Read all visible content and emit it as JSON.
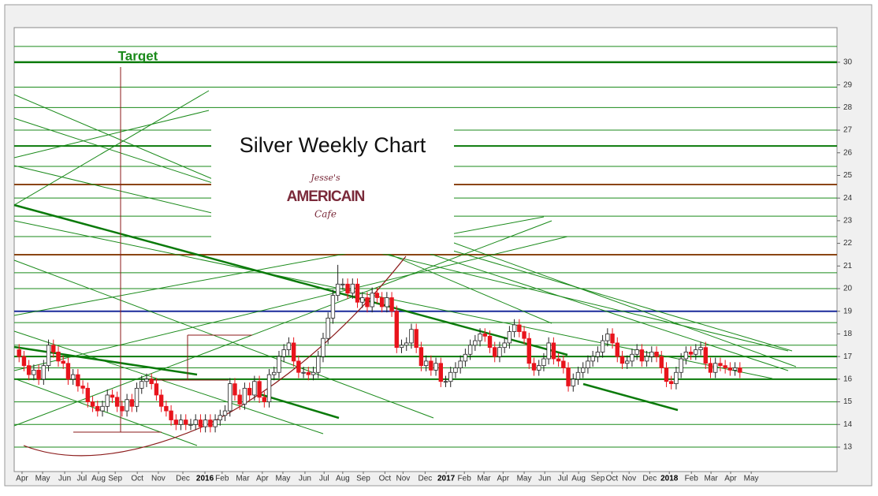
{
  "chart_data": {
    "type": "candlestick",
    "title": "Silver Weekly Chart",
    "annotation": "Target",
    "logo": {
      "top": "Jesse's",
      "middle": "AMERICAIN",
      "bottom": "Cafe"
    },
    "ylim": [
      11.92,
      31.53
    ],
    "yticks": [
      13,
      14,
      15,
      16,
      17,
      18,
      19,
      20,
      21,
      22,
      23,
      24,
      25,
      26,
      27,
      28,
      29,
      30
    ],
    "xlim": [
      0,
      167.8
    ],
    "xticks": [
      {
        "value": 1.6,
        "label": "Apr"
      },
      {
        "value": 5.8,
        "label": "May"
      },
      {
        "value": 10.3,
        "label": "Jun"
      },
      {
        "value": 13.8,
        "label": "Jul"
      },
      {
        "value": 17.2,
        "label": "Aug"
      },
      {
        "value": 20.6,
        "label": "Sep"
      },
      {
        "value": 25.1,
        "label": "Oct"
      },
      {
        "value": 29.4,
        "label": "Nov"
      },
      {
        "value": 34.4,
        "label": "Dec"
      },
      {
        "value": 38.9,
        "label": "2016"
      },
      {
        "value": 42.4,
        "label": "Feb"
      },
      {
        "value": 46.6,
        "label": "Mar"
      },
      {
        "value": 50.6,
        "label": "Apr"
      },
      {
        "value": 54.8,
        "label": "May"
      },
      {
        "value": 59.3,
        "label": "Jun"
      },
      {
        "value": 63.2,
        "label": "Jul"
      },
      {
        "value": 67.0,
        "label": "Aug"
      },
      {
        "value": 71.2,
        "label": "Sep"
      },
      {
        "value": 75.6,
        "label": "Oct"
      },
      {
        "value": 79.3,
        "label": "Nov"
      },
      {
        "value": 83.8,
        "label": "Dec"
      },
      {
        "value": 88.1,
        "label": "2017"
      },
      {
        "value": 91.8,
        "label": "Feb"
      },
      {
        "value": 95.8,
        "label": "Mar"
      },
      {
        "value": 99.7,
        "label": "Apr"
      },
      {
        "value": 104.0,
        "label": "May"
      },
      {
        "value": 108.2,
        "label": "Jun"
      },
      {
        "value": 111.9,
        "label": "Jul"
      },
      {
        "value": 115.1,
        "label": "Aug"
      },
      {
        "value": 119.0,
        "label": "Sep"
      },
      {
        "value": 121.9,
        "label": "Oct"
      },
      {
        "value": 125.4,
        "label": "Nov"
      },
      {
        "value": 129.6,
        "label": "Dec"
      },
      {
        "value": 133.6,
        "label": "2018"
      },
      {
        "value": 138.1,
        "label": "Feb"
      },
      {
        "value": 142.1,
        "label": "Mar"
      },
      {
        "value": 146.1,
        "label": "Apr"
      },
      {
        "value": 150.3,
        "label": "May"
      }
    ],
    "up_color": "#ffffff",
    "down_color": "#e8141c",
    "reference_lines": [
      {
        "value": 30.7,
        "color": "#1a8a1a",
        "width": 1
      },
      {
        "value": 30,
        "color": "#0a7a0a",
        "width": 2.5
      },
      {
        "value": 28.9,
        "color": "#1a8a1a",
        "width": 1
      },
      {
        "value": 28,
        "color": "#1a8a1a",
        "width": 1
      },
      {
        "value": 27,
        "color": "#1a8a1a",
        "width": 1
      },
      {
        "value": 26.3,
        "color": "#0a7a0a",
        "width": 2
      },
      {
        "value": 25.4,
        "color": "#1a8a1a",
        "width": 1
      },
      {
        "value": 24.6,
        "color": "#8b4513",
        "width": 2
      },
      {
        "value": 24,
        "color": "#1a8a1a",
        "width": 1
      },
      {
        "value": 23.2,
        "color": "#1a8a1a",
        "width": 1
      },
      {
        "value": 22.3,
        "color": "#1a8a1a",
        "width": 1
      },
      {
        "value": 21.5,
        "color": "#8b4513",
        "width": 2
      },
      {
        "value": 20.7,
        "color": "#1a8a1a",
        "width": 1
      },
      {
        "value": 20,
        "color": "#1a8a1a",
        "width": 1
      },
      {
        "value": 19,
        "color": "#1a2a9a",
        "width": 2
      },
      {
        "value": 18.5,
        "color": "#1a8a1a",
        "width": 1
      },
      {
        "value": 17.5,
        "color": "#1a8a1a",
        "width": 1
      },
      {
        "value": 17,
        "color": "#0a7a0a",
        "width": 2
      },
      {
        "value": 16.5,
        "color": "#1a8a1a",
        "width": 1
      },
      {
        "value": 16,
        "color": "#0a7a0a",
        "width": 2
      },
      {
        "value": 15,
        "color": "#1a8a1a",
        "width": 1
      },
      {
        "value": 14,
        "color": "#1a8a1a",
        "width": 1
      },
      {
        "value": 13,
        "color": "#1a8a1a",
        "width": 1
      }
    ],
    "open": [
      17.3,
      17.0,
      16.6,
      16.2,
      16.4,
      16.0,
      16.6,
      17.5,
      17.2,
      16.8,
      16.7,
      16.0,
      16.2,
      15.7,
      15.6,
      15.0,
      14.8,
      14.6,
      14.8,
      15.3,
      15.2,
      14.8,
      14.6,
      15.1,
      14.8,
      15.6,
      15.9,
      16.0,
      15.8,
      15.3,
      14.8,
      14.6,
      14.2,
      14.0,
      14.2,
      14.0,
      14.0,
      14.2,
      13.9,
      14.2,
      13.9,
      14.2,
      14.4,
      14.6,
      15.8,
      15.3,
      14.9,
      15.6,
      15.3,
      15.9,
      15.2,
      15.0,
      16.2,
      16.3,
      17.0,
      17.3,
      17.6,
      16.8,
      16.3,
      16.3,
      16.2,
      16.3,
      17.0,
      17.8,
      18.7,
      19.7,
      20.2,
      20.2,
      19.8,
      20.2,
      19.4,
      19.6,
      19.2,
      19.8,
      19.6,
      19.2,
      19.6,
      19.0,
      17.4,
      17.5,
      17.6,
      18.2,
      17.4,
      16.6,
      16.8,
      16.4,
      16.7,
      15.9,
      15.9,
      16.3,
      16.5,
      16.8,
      17.1,
      17.5,
      17.7,
      18.0,
      17.9,
      17.4,
      17.0,
      17.4,
      17.6,
      18.1,
      18.4,
      18.1,
      17.8,
      16.7,
      16.4,
      16.6,
      16.9,
      17.6,
      16.9,
      16.8,
      16.5,
      15.7,
      16.0,
      16.3,
      16.5,
      16.8,
      17.0,
      17.2,
      17.7,
      18.0,
      17.6,
      17.0,
      16.7,
      16.8,
      17.1,
      17.3,
      16.8,
      17.0,
      17.2,
      17.0,
      16.5,
      15.9,
      15.8,
      16.3,
      16.9,
      17.2,
      17.1,
      17.3,
      17.4,
      16.7,
      16.3,
      16.7,
      16.6,
      16.5,
      16.4,
      16.5
    ],
    "high": [
      17.55,
      17.25,
      16.85,
      16.65,
      16.65,
      16.85,
      17.75,
      17.75,
      17.45,
      17.05,
      16.95,
      16.45,
      16.45,
      15.95,
      15.85,
      15.25,
      15.05,
      15.05,
      15.55,
      15.55,
      15.45,
      15.05,
      15.35,
      15.35,
      15.85,
      16.15,
      16.25,
      16.25,
      16.05,
      15.55,
      15.05,
      14.85,
      14.45,
      14.45,
      14.45,
      14.25,
      14.45,
      14.45,
      14.45,
      14.45,
      14.45,
      14.65,
      14.85,
      16.05,
      16.05,
      15.55,
      15.85,
      15.85,
      16.15,
      16.15,
      15.45,
      16.45,
      16.55,
      17.25,
      17.55,
      17.85,
      17.85,
      17.05,
      16.55,
      16.55,
      16.55,
      17.25,
      18.05,
      18.95,
      19.95,
      21.05,
      20.45,
      20.45,
      20.45,
      20.45,
      19.85,
      19.85,
      20.05,
      20.05,
      19.85,
      19.85,
      19.85,
      19.25,
      17.75,
      17.85,
      18.45,
      18.45,
      17.65,
      17.05,
      17.05,
      16.95,
      16.95,
      16.15,
      16.55,
      16.75,
      17.05,
      17.35,
      17.75,
      17.95,
      18.25,
      18.25,
      18.15,
      17.65,
      17.65,
      17.85,
      18.35,
      18.65,
      18.65,
      18.35,
      18.05,
      16.95,
      16.85,
      17.15,
      17.85,
      17.85,
      17.15,
      17.05,
      16.75,
      16.25,
      16.55,
      16.75,
      17.05,
      17.25,
      17.45,
      17.95,
      18.25,
      18.25,
      17.85,
      17.25,
      17.05,
      17.35,
      17.55,
      17.55,
      17.25,
      17.45,
      17.45,
      17.25,
      16.75,
      16.15,
      16.55,
      17.15,
      17.45,
      17.45,
      17.55,
      17.65,
      17.65,
      16.95,
      16.95,
      16.95,
      16.85,
      16.75,
      16.75,
      16.75
    ],
    "low": [
      16.75,
      16.35,
      15.95,
      15.95,
      15.75,
      15.75,
      16.35,
      16.95,
      16.55,
      16.45,
      15.75,
      15.75,
      15.45,
      15.35,
      14.75,
      14.55,
      14.35,
      14.35,
      14.55,
      14.95,
      14.55,
      14.35,
      14.35,
      14.55,
      14.55,
      15.35,
      15.65,
      15.55,
      15.05,
      14.55,
      14.35,
      13.95,
      13.75,
      13.75,
      13.75,
      13.75,
      13.75,
      13.65,
      13.65,
      13.65,
      13.65,
      13.95,
      14.15,
      14.35,
      15.05,
      14.65,
      14.65,
      15.05,
      15.05,
      14.95,
      14.75,
      14.75,
      15.95,
      16.05,
      16.75,
      17.05,
      16.55,
      16.05,
      16.05,
      15.95,
      15.95,
      16.05,
      16.75,
      17.55,
      18.45,
      19.45,
      19.95,
      19.55,
      19.55,
      19.15,
      19.15,
      18.95,
      18.95,
      19.35,
      18.95,
      18.95,
      18.75,
      17.15,
      17.15,
      17.25,
      17.35,
      17.15,
      16.35,
      16.35,
      16.15,
      16.15,
      15.65,
      15.65,
      15.65,
      16.05,
      16.25,
      16.55,
      16.85,
      17.25,
      17.45,
      17.65,
      17.15,
      16.75,
      16.75,
      17.15,
      17.35,
      17.85,
      17.85,
      17.55,
      16.45,
      16.15,
      16.15,
      16.35,
      16.65,
      16.65,
      16.55,
      16.25,
      15.45,
      15.45,
      15.75,
      16.05,
      16.25,
      16.55,
      16.75,
      16.95,
      17.45,
      17.35,
      16.75,
      16.45,
      16.45,
      16.55,
      16.85,
      16.55,
      16.55,
      16.75,
      16.75,
      16.25,
      15.65,
      15.55,
      15.55,
      16.05,
      16.65,
      16.85,
      16.85,
      17.05,
      16.45,
      16.05,
      16.05,
      16.35,
      16.25,
      16.15,
      16.15,
      16.05
    ],
    "close": [
      17.0,
      16.6,
      16.2,
      16.4,
      16.0,
      16.6,
      17.5,
      17.2,
      16.8,
      16.7,
      16.0,
      16.2,
      15.7,
      15.6,
      15.0,
      14.8,
      14.6,
      14.8,
      15.3,
      15.2,
      14.8,
      14.6,
      15.1,
      14.8,
      15.6,
      15.9,
      16.0,
      15.8,
      15.3,
      14.8,
      14.6,
      14.2,
      14.0,
      14.2,
      14.0,
      14.0,
      14.2,
      13.9,
      14.2,
      13.9,
      14.2,
      14.4,
      14.6,
      15.8,
      15.3,
      14.9,
      15.6,
      15.3,
      15.9,
      15.2,
      15.0,
      16.2,
      16.3,
      17.0,
      17.3,
      17.6,
      16.8,
      16.3,
      16.3,
      16.2,
      16.3,
      17.0,
      17.8,
      18.7,
      19.7,
      20.2,
      20.2,
      19.8,
      20.2,
      19.4,
      19.6,
      19.2,
      19.8,
      19.6,
      19.2,
      19.6,
      19.0,
      17.4,
      17.5,
      17.6,
      18.2,
      17.4,
      16.6,
      16.8,
      16.4,
      16.7,
      15.9,
      15.9,
      16.3,
      16.5,
      16.8,
      17.1,
      17.5,
      17.7,
      18.0,
      17.9,
      17.4,
      17.0,
      17.4,
      17.6,
      18.1,
      18.4,
      18.1,
      17.8,
      16.7,
      16.4,
      16.6,
      16.9,
      17.6,
      16.9,
      16.8,
      16.5,
      15.7,
      16.0,
      16.3,
      16.5,
      16.8,
      17.0,
      17.2,
      17.7,
      18.0,
      17.6,
      17.0,
      16.7,
      16.8,
      17.1,
      17.3,
      16.8,
      17.0,
      17.2,
      17.0,
      16.5,
      15.9,
      15.8,
      16.3,
      16.9,
      17.2,
      17.1,
      17.3,
      17.4,
      16.7,
      16.3,
      16.7,
      16.6,
      16.5,
      16.4,
      16.5,
      16.3
    ]
  }
}
